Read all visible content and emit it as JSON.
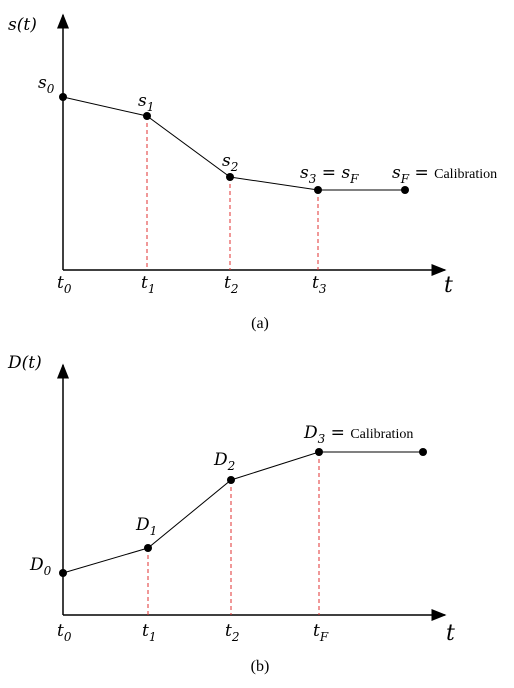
{
  "panels": [
    {
      "y_label": [
        [
          "s(t)",
          "i"
        ]
      ],
      "x_label": [
        [
          "t",
          "i"
        ]
      ],
      "points": [
        {
          "label": [
            [
              "s",
              "i"
            ],
            [
              "0",
              "sub"
            ]
          ]
        },
        {
          "label": [
            [
              "s",
              "i"
            ],
            [
              "1",
              "sub"
            ]
          ]
        },
        {
          "label": [
            [
              "s",
              "i"
            ],
            [
              "2",
              "sub"
            ]
          ]
        },
        {
          "label": [
            [
              "s",
              "i"
            ],
            [
              "3",
              "sub"
            ],
            [
              " = ",
              "r"
            ],
            [
              "s",
              "i"
            ],
            [
              "F",
              "sub"
            ]
          ]
        },
        {
          "label": [
            [
              "s",
              "i"
            ],
            [
              "F",
              "sub"
            ],
            [
              " = ",
              "r"
            ],
            [
              "Calibration",
              "small"
            ]
          ]
        }
      ],
      "ticks": [
        [
          [
            "t",
            "i"
          ],
          [
            "0",
            "sub"
          ]
        ],
        [
          [
            "t",
            "i"
          ],
          [
            "1",
            "sub"
          ]
        ],
        [
          [
            "t",
            "i"
          ],
          [
            "2",
            "sub"
          ]
        ],
        [
          [
            "t",
            "i"
          ],
          [
            "3",
            "sub"
          ]
        ]
      ],
      "caption": "(a)"
    },
    {
      "y_label": [
        [
          "D(t)",
          "i"
        ]
      ],
      "x_label": [
        [
          "t",
          "i"
        ]
      ],
      "points": [
        {
          "label": [
            [
              "D",
              "i"
            ],
            [
              "0",
              "sub"
            ]
          ]
        },
        {
          "label": [
            [
              "D",
              "i"
            ],
            [
              "1",
              "sub"
            ]
          ]
        },
        {
          "label": [
            [
              "D",
              "i"
            ],
            [
              "2",
              "sub"
            ]
          ]
        },
        {
          "label": [
            [
              "D",
              "i"
            ],
            [
              "3",
              "sub"
            ],
            [
              " = ",
              "r"
            ],
            [
              "Calibration",
              "small"
            ]
          ]
        },
        {
          "label": []
        }
      ],
      "ticks": [
        [
          [
            "t",
            "i"
          ],
          [
            "0",
            "sub"
          ]
        ],
        [
          [
            "t",
            "i"
          ],
          [
            "1",
            "sub"
          ]
        ],
        [
          [
            "t",
            "i"
          ],
          [
            "2",
            "sub"
          ]
        ],
        [
          [
            "t",
            "i"
          ],
          [
            "F",
            "sub"
          ]
        ]
      ],
      "caption": "(b)"
    }
  ]
}
